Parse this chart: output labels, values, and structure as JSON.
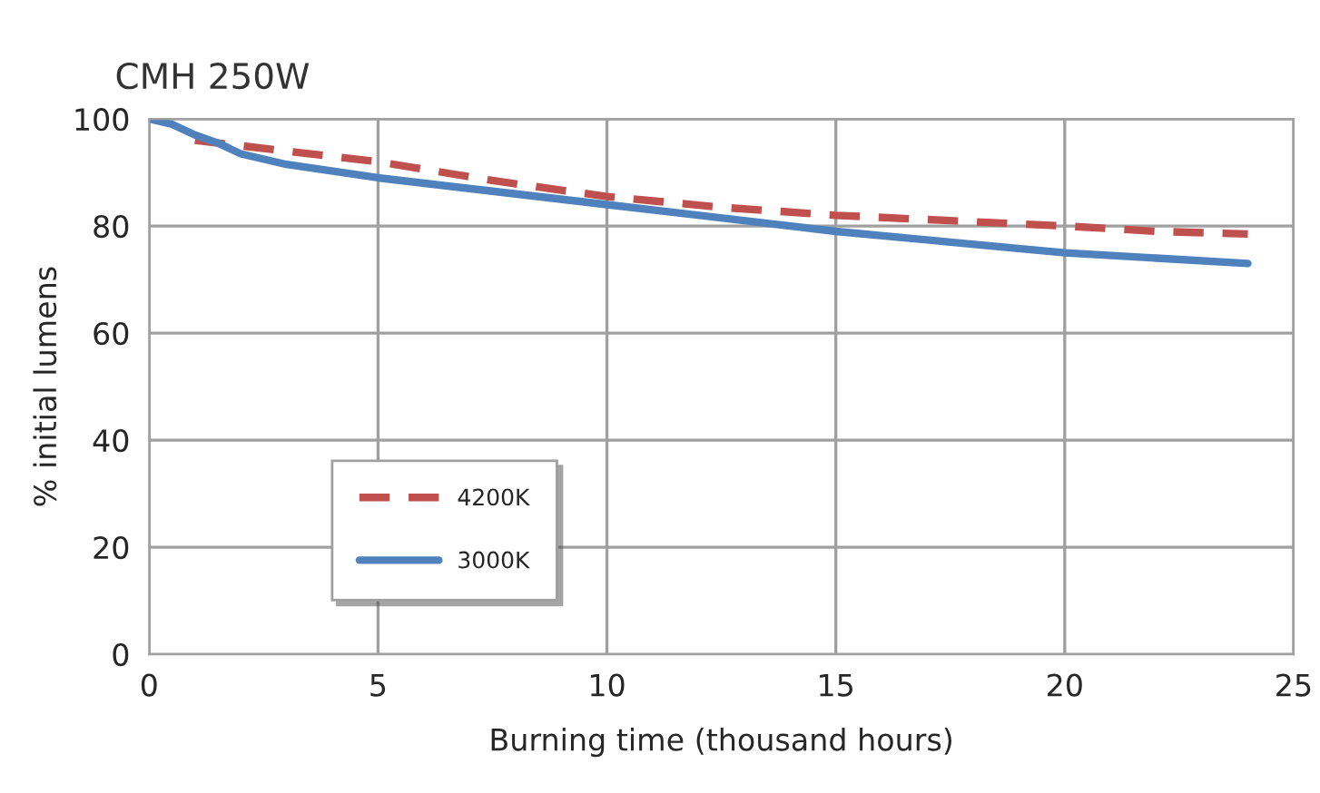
{
  "chart_data": {
    "type": "line",
    "title": "CMH 250W",
    "xlabel": "Burning time (thousand hours)",
    "ylabel": "% initial lumens",
    "series": [
      {
        "name": "4200K",
        "color": "#c0504d",
        "line_style": "dashed",
        "x": [
          1,
          3,
          5,
          7.5,
          10,
          12.5,
          15,
          17.5,
          20,
          22,
          24
        ],
        "values": [
          96,
          94,
          92,
          88.5,
          85.5,
          83.5,
          82,
          81,
          80,
          79,
          78.5
        ]
      },
      {
        "name": "3000K",
        "color": "#4f81bd",
        "line_style": "solid",
        "x": [
          0,
          0.5,
          1,
          1.5,
          2,
          3,
          5,
          7.5,
          10,
          13.5,
          15,
          17.5,
          20,
          22,
          24
        ],
        "values": [
          100,
          99,
          97,
          95.5,
          93.5,
          91.5,
          89,
          86.5,
          84,
          80.5,
          79,
          77,
          75,
          74,
          73
        ]
      }
    ],
    "xlim": [
      0,
      25
    ],
    "xticks": [
      0,
      5,
      10,
      15,
      20,
      25
    ],
    "ylim": [
      0,
      100
    ],
    "yticks": [
      0,
      20,
      40,
      60,
      80,
      100
    ],
    "grid": true,
    "legend": "bottom left",
    "marker": "none"
  }
}
